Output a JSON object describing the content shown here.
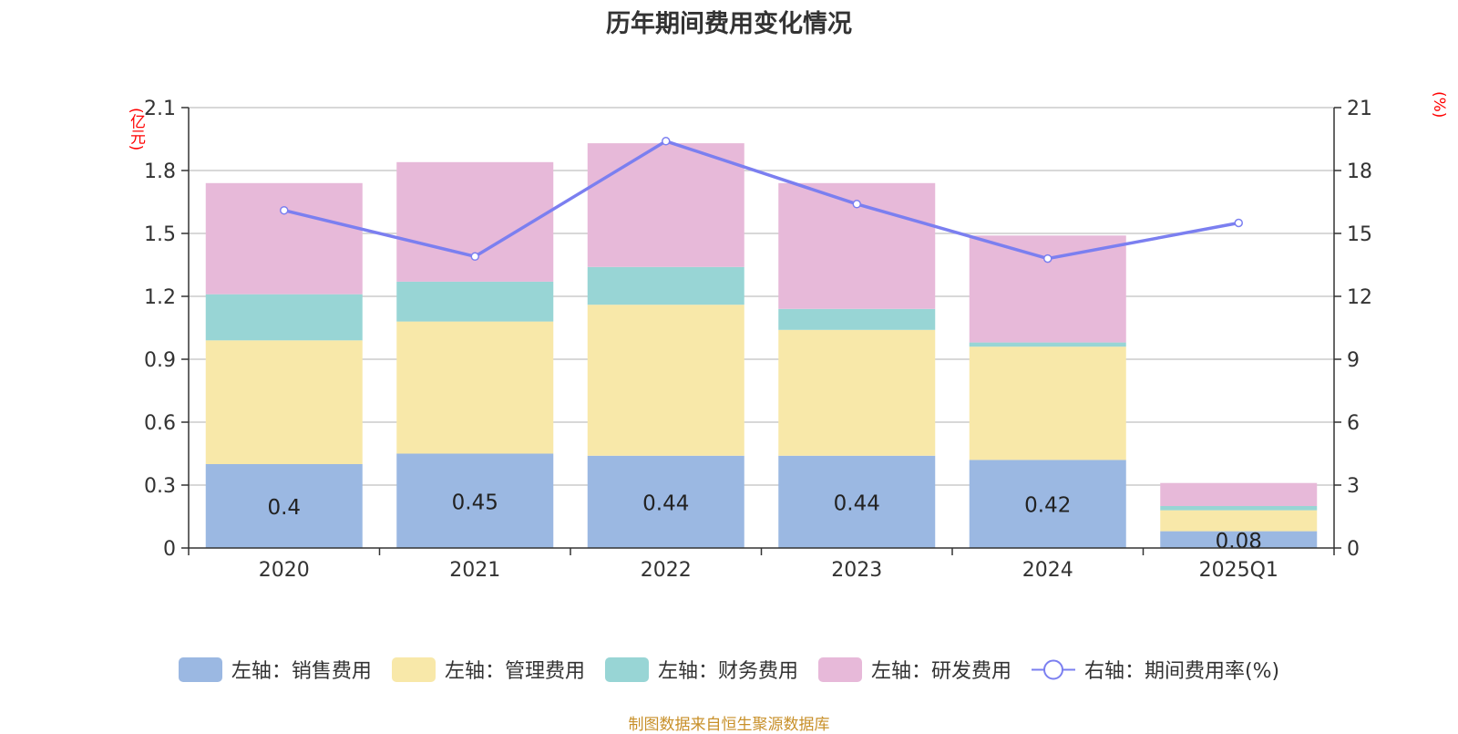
{
  "chart_data": {
    "type": "bar",
    "stacked": true,
    "title": "历年期间费用变化情况",
    "categories": [
      "2020",
      "2021",
      "2022",
      "2023",
      "2024",
      "2025Q1"
    ],
    "left_axis": {
      "unit": "(亿元)",
      "ylim": [
        0,
        2.1
      ],
      "ticks": [
        "0",
        "0.3",
        "0.6",
        "0.9",
        "1.2",
        "1.5",
        "1.8",
        "2.1"
      ]
    },
    "right_axis": {
      "unit": "(%)",
      "ylim": [
        0,
        21
      ],
      "ticks": [
        "0",
        "3",
        "6",
        "9",
        "12",
        "15",
        "18",
        "21"
      ]
    },
    "series": [
      {
        "name": "左轴：销售费用",
        "type": "bar",
        "axis": "left",
        "color": "#9bb8e2",
        "values": [
          0.4,
          0.45,
          0.44,
          0.44,
          0.42,
          0.08
        ],
        "data_labels": [
          "0.4",
          "0.45",
          "0.44",
          "0.44",
          "0.42",
          "0.08"
        ]
      },
      {
        "name": "左轴：管理费用",
        "type": "bar",
        "axis": "left",
        "color": "#f8e8a9",
        "values": [
          0.59,
          0.63,
          0.72,
          0.6,
          0.54,
          0.1
        ]
      },
      {
        "name": "左轴：财务费用",
        "type": "bar",
        "axis": "left",
        "color": "#98d5d5",
        "values": [
          0.22,
          0.19,
          0.18,
          0.1,
          0.02,
          0.02
        ]
      },
      {
        "name": "左轴：研发费用",
        "type": "bar",
        "axis": "left",
        "color": "#e7b9d9",
        "values": [
          0.53,
          0.57,
          0.59,
          0.6,
          0.51,
          0.11
        ]
      },
      {
        "name": "右轴：期间费用率(%)",
        "type": "line",
        "axis": "right",
        "color": "#7b7ff0",
        "values": [
          16.1,
          13.9,
          19.4,
          16.4,
          13.8,
          15.5
        ]
      }
    ],
    "grid": true,
    "legend_position": "bottom",
    "source": "制图数据来自恒生聚源数据库"
  }
}
